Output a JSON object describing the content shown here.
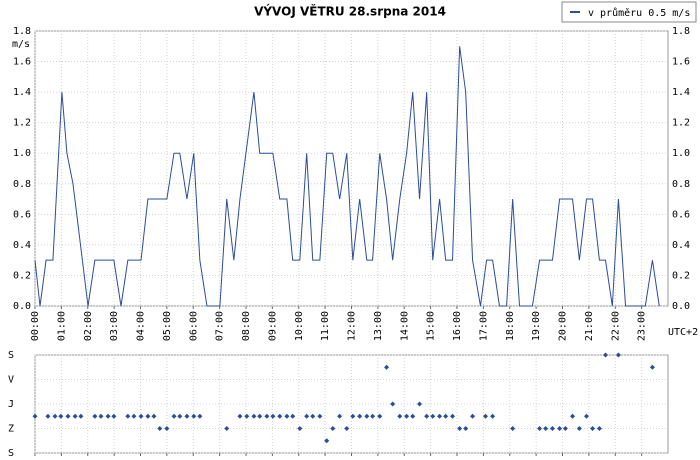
{
  "chart_data": [
    {
      "type": "line",
      "title": "VÝVOJ VĚTRU  28.srpna 2014",
      "ylabel": "m/s",
      "xlabel": "UTC+2",
      "x": [
        0,
        0.19,
        0.42,
        0.68,
        1.02,
        1.21,
        1.44,
        2.01,
        2.27,
        2.99,
        3.26,
        3.52,
        4.02,
        4.28,
        5.0,
        5.27,
        5.49,
        5.76,
        6.02,
        6.25,
        6.52,
        7.01,
        7.27,
        7.54,
        7.77,
        8.3,
        8.52,
        9.02,
        9.28,
        9.55,
        9.77,
        10.04,
        10.3,
        10.53,
        10.8,
        11.06,
        11.29,
        11.55,
        11.82,
        12.05,
        12.31,
        12.58,
        12.8,
        13.07,
        13.33,
        13.56,
        13.83,
        14.09,
        14.32,
        14.58,
        14.85,
        15.08,
        15.34,
        15.57,
        15.83,
        16.1,
        16.33,
        16.59,
        16.89,
        17.12,
        17.35,
        17.61,
        17.88,
        18.11,
        18.37,
        18.86,
        19.13,
        19.62,
        19.89,
        20.38,
        20.64,
        20.91,
        21.14,
        21.4,
        21.63,
        21.89,
        22.12,
        22.39,
        23.14,
        23.41,
        23.67
      ],
      "series": [
        {
          "name": "v průměru 0.5 m/s",
          "color": "#2b4d9b",
          "values": [
            0.3,
            0,
            0.3,
            0.3,
            1.4,
            1.0,
            0.8,
            0,
            0.3,
            0.3,
            0,
            0.3,
            0.3,
            0.7,
            0.7,
            1.0,
            1.0,
            0.7,
            1.0,
            0.3,
            0,
            0,
            0.7,
            0.3,
            0.7,
            1.4,
            1.0,
            1.0,
            0.7,
            0.7,
            0.3,
            0.3,
            1.0,
            0.3,
            0.3,
            1.0,
            1.0,
            0.7,
            1.0,
            0.3,
            0.7,
            0.3,
            0.3,
            1.0,
            0.7,
            0.3,
            0.7,
            1.0,
            1.4,
            0.7,
            1.4,
            0.3,
            0.7,
            0.3,
            0.3,
            1.7,
            1.4,
            0.3,
            0,
            0.3,
            0.3,
            0,
            0,
            0.7,
            0,
            0,
            0.3,
            0.3,
            0.7,
            0.7,
            0.3,
            0.7,
            0.7,
            0.3,
            0.3,
            0,
            0.7,
            0,
            0,
            0.3,
            0
          ]
        }
      ],
      "xlim": [
        0,
        24
      ],
      "xticks": [
        {
          "value": 0,
          "label": "00:00"
        },
        {
          "value": 1,
          "label": "01:00"
        },
        {
          "value": 2,
          "label": "02:00"
        },
        {
          "value": 3,
          "label": "03:00"
        },
        {
          "value": 4,
          "label": "04:00"
        },
        {
          "value": 5,
          "label": "05:00"
        },
        {
          "value": 6,
          "label": "06:00"
        },
        {
          "value": 7,
          "label": "07:00"
        },
        {
          "value": 8,
          "label": "08:00"
        },
        {
          "value": 9,
          "label": "09:00"
        },
        {
          "value": 10,
          "label": "10:00"
        },
        {
          "value": 11,
          "label": "11:00"
        },
        {
          "value": 12,
          "label": "12:00"
        },
        {
          "value": 13,
          "label": "13:00"
        },
        {
          "value": 14,
          "label": "14:00"
        },
        {
          "value": 15,
          "label": "15:00"
        },
        {
          "value": 16,
          "label": "16:00"
        },
        {
          "value": 17,
          "label": "17:00"
        },
        {
          "value": 18,
          "label": "18:00"
        },
        {
          "value": 19,
          "label": "19:00"
        },
        {
          "value": 20,
          "label": "20:00"
        },
        {
          "value": 21,
          "label": "21:00"
        },
        {
          "value": 22,
          "label": "22:00"
        },
        {
          "value": 23,
          "label": "23:00"
        }
      ],
      "ylim": [
        0,
        1.8
      ],
      "yticks": [
        {
          "value": 0,
          "label": "0.0"
        },
        0.2,
        0.4,
        0.6,
        0.8,
        {
          "value": 1,
          "label": "1.0"
        },
        1.2,
        1.4,
        1.6,
        1.8
      ],
      "grid": true,
      "legend": "top-right"
    },
    {
      "type": "scatter",
      "color": "#2b4d9b",
      "x": [
        0,
        0.49,
        0.76,
        0.98,
        1.25,
        1.52,
        1.74,
        2.27,
        2.5,
        2.77,
        2.99,
        3.52,
        3.75,
        4.02,
        4.28,
        4.51,
        4.73,
        5.0,
        5.27,
        5.49,
        5.76,
        6.02,
        6.25,
        7.27,
        7.77,
        8.03,
        8.3,
        8.52,
        8.79,
        9.02,
        9.28,
        9.55,
        9.77,
        10.04,
        10.3,
        10.53,
        10.8,
        11.06,
        11.29,
        11.55,
        11.82,
        12.05,
        12.31,
        12.58,
        12.8,
        13.07,
        13.33,
        13.56,
        13.83,
        14.09,
        14.32,
        14.58,
        14.85,
        15.08,
        15.34,
        15.57,
        15.83,
        16.1,
        16.33,
        16.59,
        17.08,
        17.35,
        18.11,
        19.13,
        19.36,
        19.62,
        19.89,
        20.11,
        20.38,
        20.64,
        20.91,
        21.14,
        21.4,
        21.63,
        22.12,
        23.41
      ],
      "values": [
        225,
        225,
        225,
        225,
        225,
        225,
        225,
        225,
        225,
        225,
        225,
        225,
        225,
        225,
        225,
        225,
        270,
        270,
        225,
        225,
        225,
        225,
        225,
        270,
        225,
        225,
        225,
        225,
        225,
        225,
        225,
        225,
        225,
        270,
        225,
        225,
        225,
        315,
        270,
        225,
        270,
        225,
        225,
        225,
        225,
        225,
        45,
        180,
        225,
        225,
        225,
        180,
        225,
        225,
        225,
        225,
        225,
        270,
        270,
        225,
        225,
        225,
        270,
        270,
        270,
        270,
        270,
        270,
        225,
        270,
        225,
        270,
        270,
        0,
        0,
        45
      ],
      "xlim": [
        0,
        24
      ],
      "xticks": [
        0,
        1,
        2,
        3,
        4,
        5,
        6,
        7,
        8,
        9,
        10,
        11,
        12,
        13,
        14,
        15,
        16,
        17,
        18,
        19,
        20,
        21,
        22,
        23
      ],
      "ylim": [
        0,
        360
      ],
      "y_inverted": true,
      "yticks": [
        {
          "value": 0,
          "label": "S"
        },
        {
          "value": 90,
          "label": "V"
        },
        {
          "value": 180,
          "label": "J"
        },
        {
          "value": 270,
          "label": "Z"
        },
        {
          "value": 360,
          "label": "S"
        }
      ],
      "grid": true
    }
  ]
}
